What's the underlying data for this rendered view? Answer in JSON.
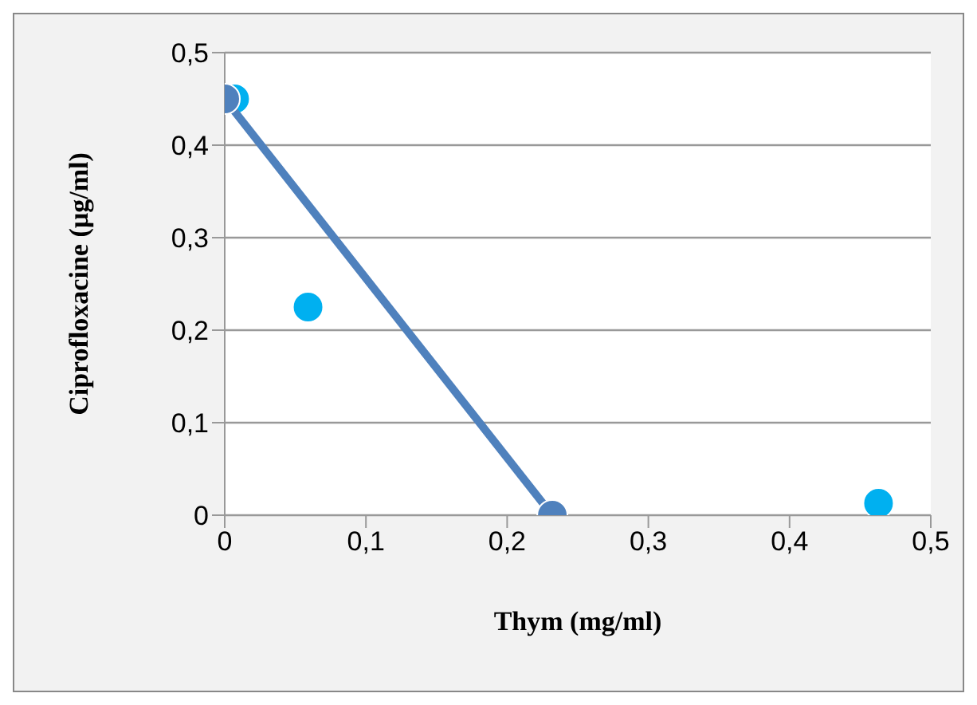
{
  "chart_data": {
    "type": "scatter",
    "xlabel": "Thym (mg/ml)",
    "ylabel": "Ciprofloxacine (µg/ml)",
    "series": [
      {
        "type": "line",
        "color": "#4f81bd",
        "x": [
          0,
          0.232
        ],
        "values": [
          0.45,
          0
        ],
        "marker": "circle"
      },
      {
        "color": "#00b0f0",
        "x": [
          0.007,
          0.059,
          0.463
        ],
        "values": [
          0.45,
          0.225,
          0.013
        ]
      }
    ],
    "xlim": [
      0,
      0.5
    ],
    "ylim": [
      0,
      0.5
    ],
    "xticks": [
      0,
      {
        "value": 0.1,
        "label": "0,1"
      },
      {
        "value": 0.2,
        "label": "0,2"
      },
      {
        "value": 0.3,
        "label": "0,3"
      },
      {
        "value": 0.4,
        "label": "0,4"
      },
      {
        "value": 0.5,
        "label": "0,5"
      }
    ],
    "yticks": [
      0,
      {
        "value": 0.1,
        "label": "0,1"
      },
      {
        "value": 0.2,
        "label": "0,2"
      },
      {
        "value": 0.3,
        "label": "0,3"
      },
      {
        "value": 0.4,
        "label": "0,4"
      },
      {
        "value": 0.5,
        "label": "0,5"
      }
    ],
    "grid": "y",
    "marker": "circle"
  }
}
